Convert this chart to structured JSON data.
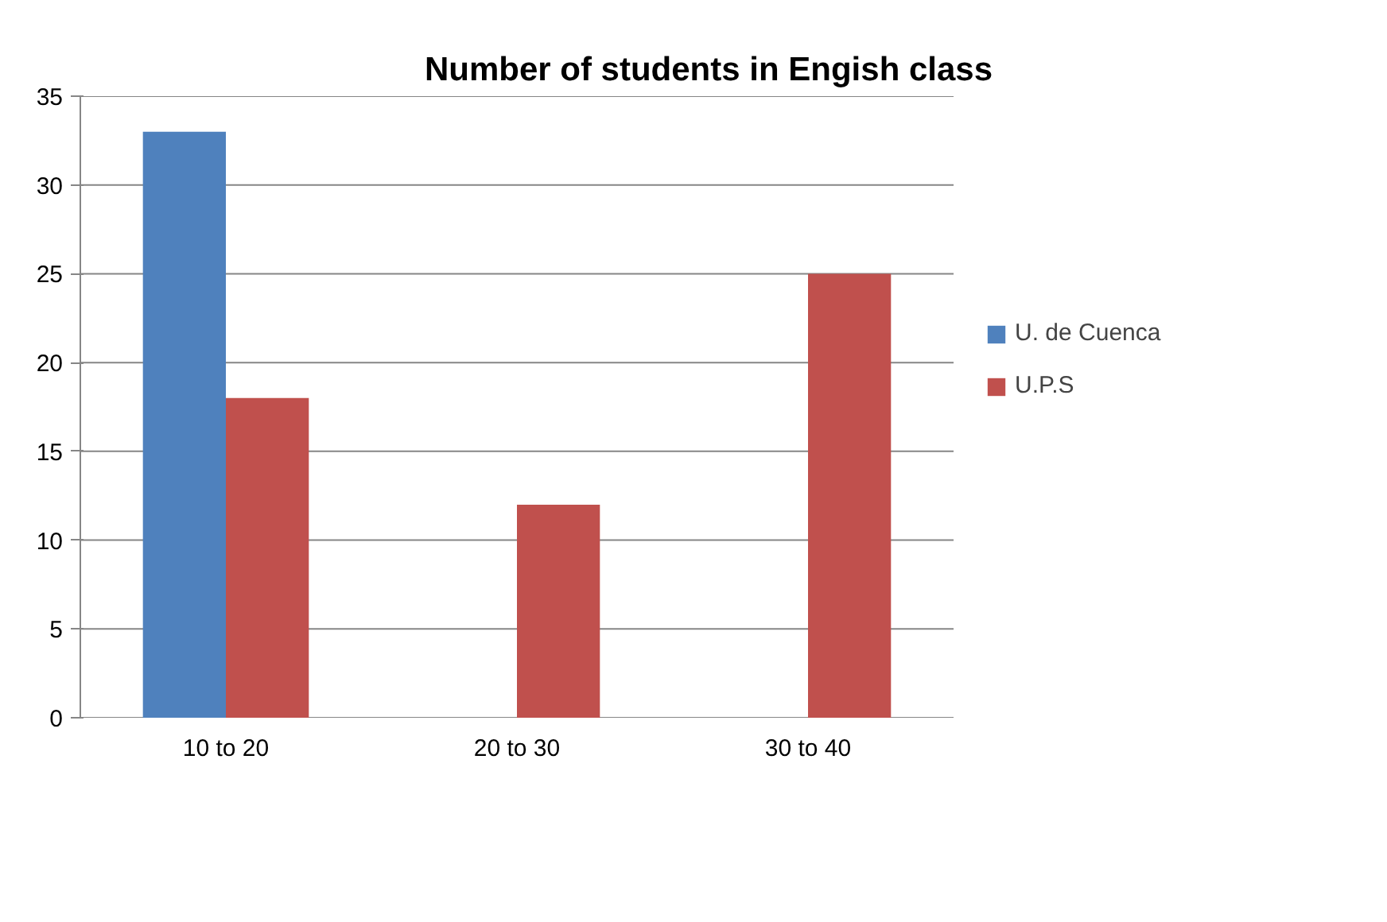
{
  "chart_data": {
    "type": "bar",
    "title": "Number of students in Engish class",
    "categories": [
      "10 to 20",
      "20 to 30",
      "30 to 40"
    ],
    "series": [
      {
        "name": "U. de Cuenca",
        "color": "#4f81bd",
        "values": [
          33,
          null,
          null
        ]
      },
      {
        "name": "U.P.S",
        "color": "#c0504d",
        "values": [
          18,
          12,
          25
        ]
      }
    ],
    "ylim": [
      0,
      35
    ],
    "yticks": [
      0,
      5,
      10,
      15,
      20,
      25,
      30,
      35
    ],
    "grid": "y",
    "legend": "right"
  }
}
